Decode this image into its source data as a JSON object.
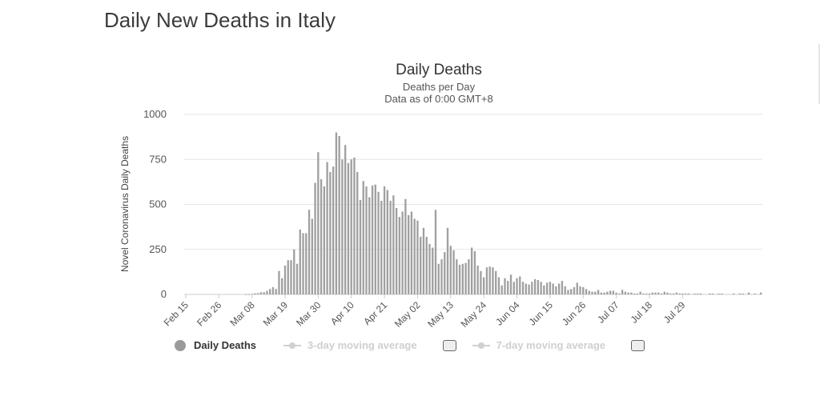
{
  "page_title": "Daily New Deaths in Italy",
  "chart_data": {
    "type": "bar",
    "title": "Daily Deaths",
    "subtitle_line1": "Deaths per Day",
    "subtitle_line2": "Data as of 0:00 GMT+8",
    "ylabel": "Novel Coronavirus Daily Deaths",
    "xlabel": "",
    "ylim": [
      0,
      1000
    ],
    "yticks": [
      "0",
      "250",
      "500",
      "750",
      "1000"
    ],
    "ytick_values": [
      0,
      250,
      500,
      750,
      1000
    ],
    "xtick_labels": [
      "Feb 15",
      "Feb 26",
      "Mar 08",
      "Mar 19",
      "Mar 30",
      "Apr 10",
      "Apr 21",
      "May 02",
      "May 13",
      "May 24",
      "Jun 04",
      "Jun 15",
      "Jun 26",
      "Jul 07",
      "Jul 18",
      "Jul 29"
    ],
    "start_label": "Feb 15",
    "series": [
      {
        "name": "Daily Deaths",
        "color": "#a0a0a0",
        "values": [
          0,
          0,
          0,
          0,
          0,
          0,
          0,
          0,
          0,
          0,
          0,
          0,
          0,
          0,
          0,
          0,
          0,
          0,
          0,
          0,
          1,
          1,
          3,
          6,
          7,
          12,
          12,
          20,
          30,
          40,
          30,
          130,
          90,
          160,
          190,
          190,
          250,
          170,
          360,
          340,
          340,
          470,
          420,
          620,
          790,
          640,
          600,
          735,
          680,
          710,
          900,
          880,
          750,
          830,
          730,
          750,
          760,
          680,
          525,
          630,
          600,
          540,
          605,
          610,
          570,
          520,
          600,
          580,
          520,
          550,
          480,
          430,
          460,
          530,
          440,
          460,
          420,
          410,
          320,
          370,
          320,
          280,
          260,
          470,
          170,
          195,
          235,
          370,
          270,
          245,
          195,
          165,
          170,
          175,
          195,
          260,
          240,
          160,
          130,
          95,
          150,
          155,
          150,
          130,
          95,
          50,
          90,
          75,
          110,
          70,
          90,
          100,
          70,
          60,
          55,
          70,
          85,
          80,
          70,
          50,
          65,
          70,
          60,
          45,
          60,
          75,
          45,
          25,
          30,
          40,
          65,
          45,
          40,
          30,
          20,
          15,
          15,
          25,
          10,
          10,
          15,
          20,
          20,
          10,
          5,
          25,
          15,
          10,
          10,
          5,
          5,
          15,
          5,
          5,
          5,
          10,
          10,
          10,
          5,
          15,
          10,
          5,
          5,
          10,
          5,
          5,
          5,
          5,
          0,
          5,
          5,
          5,
          0,
          0,
          5,
          5,
          0,
          5,
          5,
          0,
          0,
          0,
          5,
          0,
          5,
          5,
          0,
          10,
          0,
          5,
          0,
          10
        ]
      }
    ],
    "legend": [
      {
        "label": "Daily Deaths",
        "active": true
      },
      {
        "label": "3-day moving average",
        "active": false
      },
      {
        "label": "7-day moving average",
        "active": false
      }
    ]
  }
}
